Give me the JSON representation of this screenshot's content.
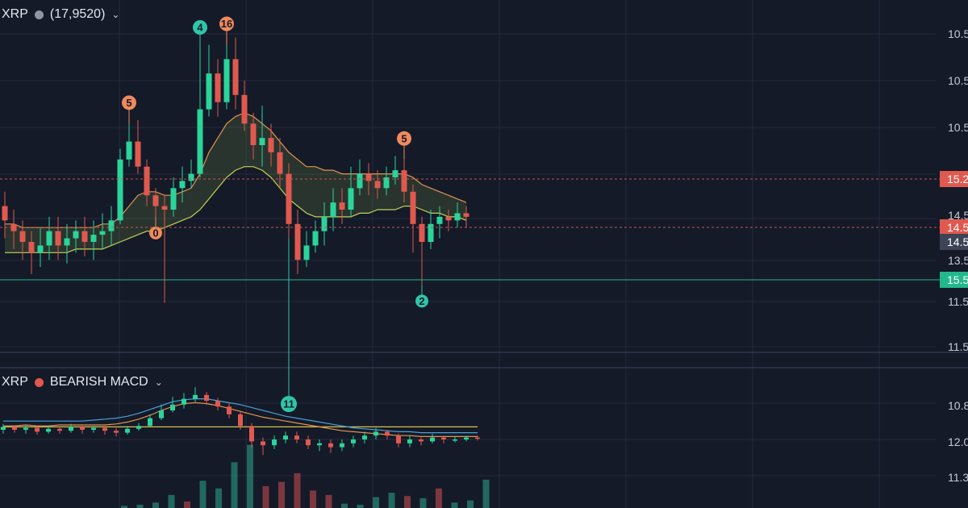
{
  "main_header": {
    "symbol": "XRP",
    "value": "(17,9520)",
    "dot_color": "#8f96a3"
  },
  "macd_header": {
    "symbol": "XRP",
    "label": "BEARISH MACD",
    "dot_color": "#e0594f"
  },
  "colors": {
    "background": "#141a28",
    "up": "#2bd49a",
    "down": "#e0594f",
    "marker_orange": "#f08a5d",
    "marker_teal": "#2fc6a8",
    "band_upper": "#e2944f",
    "band_lower": "#c3d255",
    "macd_blue": "#4a9fd8"
  },
  "chart_data": [
    {
      "type": "candlestick",
      "name": "XRP",
      "y_axis_labels": [
        "10.5",
        "10.5",
        "10.5",
        "14.5",
        "14.5",
        "13.5",
        "11.5",
        "11.5"
      ],
      "price_tags": [
        {
          "text": "15.2",
          "style": "red",
          "line": "dashed"
        },
        {
          "text": "14.5",
          "style": "red",
          "line": "dashed"
        },
        {
          "text": "14.5",
          "style": "gray",
          "line": "none"
        },
        {
          "text": "15.5",
          "style": "teal",
          "line": "solid"
        }
      ],
      "markers": [
        {
          "text": "4",
          "color": "teal",
          "position": "above",
          "candle": 22
        },
        {
          "text": "16",
          "color": "orange",
          "position": "above",
          "candle": 25
        },
        {
          "text": "5",
          "color": "orange",
          "position": "above",
          "candle": 14
        },
        {
          "text": "0",
          "color": "orange",
          "position": "below",
          "candle": 17
        },
        {
          "text": "5",
          "color": "orange",
          "position": "above",
          "candle": 45
        },
        {
          "text": "2",
          "color": "teal",
          "position": "below",
          "candle": 47
        },
        {
          "text": "11",
          "color": "teal",
          "position": "below",
          "candle": 32
        }
      ],
      "candles": [
        [
          67,
          63,
          58,
          71
        ],
        [
          62,
          60,
          55,
          66
        ],
        [
          60,
          57,
          52,
          63
        ],
        [
          57,
          54,
          48,
          60
        ],
        [
          54,
          56,
          50,
          61
        ],
        [
          56,
          60,
          52,
          64
        ],
        [
          60,
          56,
          52,
          64
        ],
        [
          56,
          58,
          51,
          62
        ],
        [
          58,
          60,
          54,
          63
        ],
        [
          60,
          57,
          53,
          64
        ],
        [
          57,
          59,
          52,
          63
        ],
        [
          59,
          60,
          55,
          65
        ],
        [
          60,
          63,
          56,
          67
        ],
        [
          63,
          80,
          62,
          83
        ],
        [
          80,
          85,
          78,
          90
        ],
        [
          85,
          78,
          76,
          91
        ],
        [
          78,
          70,
          67,
          80
        ],
        [
          70,
          67,
          64,
          72
        ],
        [
          67,
          66,
          40,
          70
        ],
        [
          66,
          72,
          64,
          75
        ],
        [
          72,
          74,
          68,
          78
        ],
        [
          74,
          76,
          72,
          80
        ],
        [
          76,
          94,
          75,
          111
        ],
        [
          94,
          104,
          92,
          112
        ],
        [
          104,
          96,
          92,
          108
        ],
        [
          96,
          108,
          94,
          112
        ],
        [
          108,
          98,
          94,
          114
        ],
        [
          98,
          90,
          88,
          102
        ],
        [
          90,
          84,
          80,
          93
        ],
        [
          84,
          86,
          78,
          95
        ],
        [
          86,
          82,
          78,
          90
        ],
        [
          82,
          76,
          72,
          86
        ],
        [
          76,
          62,
          58,
          79
        ],
        [
          62,
          52,
          48,
          66
        ],
        [
          52,
          56,
          50,
          60
        ],
        [
          56,
          60,
          54,
          63
        ],
        [
          60,
          64,
          56,
          68
        ],
        [
          64,
          68,
          60,
          72
        ],
        [
          68,
          66,
          62,
          72
        ],
        [
          66,
          72,
          64,
          78
        ],
        [
          72,
          76,
          70,
          80
        ],
        [
          76,
          74,
          70,
          79
        ],
        [
          74,
          72,
          69,
          77
        ],
        [
          72,
          75,
          70,
          78
        ],
        [
          75,
          77,
          73,
          81
        ],
        [
          77,
          71,
          68,
          80
        ],
        [
          71,
          62,
          54,
          73
        ],
        [
          62,
          57,
          45,
          64
        ],
        [
          57,
          62,
          55,
          66
        ],
        [
          62,
          64,
          58,
          67
        ],
        [
          64,
          63,
          60,
          66
        ],
        [
          63,
          65,
          61,
          68
        ],
        [
          65,
          64,
          61,
          67
        ]
      ],
      "band_upper": [
        62,
        62,
        61,
        61,
        61,
        61,
        61,
        61,
        61,
        61,
        61,
        62,
        62,
        64,
        67,
        70,
        71,
        71,
        70,
        70,
        71,
        72,
        76,
        82,
        86,
        90,
        92,
        93,
        92,
        90,
        88,
        85,
        82,
        80,
        78,
        78,
        77,
        77,
        76,
        76,
        76,
        76,
        76,
        76,
        76,
        76,
        75,
        73,
        72,
        71,
        70,
        69,
        68
      ],
      "band_lower": [
        54,
        54,
        54,
        54,
        54,
        54,
        54,
        54,
        55,
        55,
        55,
        55,
        56,
        57,
        58,
        59,
        60,
        60,
        61,
        62,
        63,
        64,
        66,
        69,
        72,
        75,
        77,
        78,
        78,
        77,
        75,
        72,
        69,
        67,
        65,
        64,
        64,
        64,
        64,
        64,
        65,
        65,
        66,
        66,
        66,
        67,
        67,
        66,
        65,
        65,
        64,
        64,
        63
      ]
    },
    {
      "type": "candlestick",
      "name": "BEARISH MACD",
      "y_axis_labels": [
        "10.8",
        "12.0",
        "11.3"
      ],
      "candles": [
        [
          0,
          0.3,
          -0.4,
          0.6
        ],
        [
          0.3,
          0,
          -0.3,
          0.5
        ],
        [
          0,
          0.2,
          -0.4,
          0.5
        ],
        [
          0.2,
          -0.2,
          -0.5,
          0.4
        ],
        [
          -0.2,
          0.1,
          -0.4,
          0.4
        ],
        [
          0.1,
          -0.1,
          -0.4,
          0.3
        ],
        [
          -0.1,
          0.3,
          -0.3,
          0.6
        ],
        [
          0.3,
          0,
          -0.4,
          0.5
        ],
        [
          0,
          0.2,
          -0.3,
          0.4
        ],
        [
          0.2,
          -0.1,
          -0.5,
          0.4
        ],
        [
          -0.1,
          -0.3,
          -0.7,
          0.2
        ],
        [
          -0.3,
          0.1,
          -0.5,
          0.4
        ],
        [
          0.1,
          0.4,
          -0.1,
          0.7
        ],
        [
          0.4,
          1.2,
          0.3,
          1.6
        ],
        [
          1.2,
          2.0,
          1.0,
          2.6
        ],
        [
          2.0,
          2.6,
          1.8,
          3.4
        ],
        [
          2.6,
          3.2,
          2.2,
          3.8
        ],
        [
          3.2,
          3.6,
          2.9,
          4.4
        ],
        [
          3.6,
          3.0,
          2.6,
          3.9
        ],
        [
          3.0,
          2.4,
          2.0,
          3.3
        ],
        [
          2.4,
          1.6,
          1.2,
          2.8
        ],
        [
          1.6,
          0.4,
          0,
          1.9
        ],
        [
          0.4,
          -1.2,
          -1.8,
          0.7
        ],
        [
          -1.2,
          -1.6,
          -2.6,
          -0.8
        ],
        [
          -1.6,
          -1.0,
          -2.0,
          -0.6
        ],
        [
          -1.0,
          -0.6,
          -1.4,
          -0.2
        ],
        [
          -0.6,
          -1.0,
          -1.4,
          -0.2
        ],
        [
          -1.0,
          -1.6,
          -2.0,
          -0.6
        ],
        [
          -1.6,
          -1.4,
          -2.2,
          -1.0
        ],
        [
          -1.4,
          -1.8,
          -2.4,
          -1.0
        ],
        [
          -1.8,
          -1.4,
          -2.2,
          -1.0
        ],
        [
          -1.4,
          -1.0,
          -1.8,
          -0.6
        ],
        [
          -1.0,
          -0.6,
          -1.4,
          -0.2
        ],
        [
          -0.6,
          -0.2,
          -1.0,
          0.2
        ],
        [
          -0.2,
          -0.6,
          -1.0,
          0
        ],
        [
          -0.6,
          -1.4,
          -1.8,
          -0.4
        ],
        [
          -1.4,
          -1.0,
          -1.8,
          -0.6
        ],
        [
          -1.0,
          -1.2,
          -1.6,
          -0.8
        ],
        [
          -1.2,
          -0.8,
          -1.4,
          -0.4
        ],
        [
          -0.8,
          -1.0,
          -1.4,
          -0.6
        ],
        [
          -1.0,
          -1.0,
          -1.3,
          -0.7
        ],
        [
          -1.0,
          -0.8,
          -1.2,
          -0.6
        ],
        [
          -0.8,
          -0.9,
          -1.1,
          -0.6
        ]
      ],
      "blue_line": [
        0.9,
        0.9,
        0.9,
        0.9,
        0.9,
        0.9,
        0.9,
        0.9,
        1.0,
        1.1,
        1.2,
        1.4,
        1.7,
        2.1,
        2.5,
        2.9,
        3.1,
        3.2,
        3.2,
        3.0,
        2.8,
        2.6,
        2.3,
        2.0,
        1.7,
        1.4,
        1.2,
        1.0,
        0.8,
        0.6,
        0.4,
        0.2,
        0.1,
        0,
        -0.1,
        -0.2,
        -0.2,
        -0.3,
        -0.3,
        -0.3,
        -0.3,
        -0.3,
        -0.3
      ],
      "orange_line": [
        0.4,
        0.4,
        0.5,
        0.4,
        0.4,
        0.5,
        0.5,
        0.5,
        0.5,
        0.5,
        0.6,
        0.8,
        1.1,
        1.5,
        2.0,
        2.4,
        2.7,
        2.8,
        2.7,
        2.5,
        2.2,
        1.9,
        1.6,
        1.3,
        1.1,
        0.9,
        0.7,
        0.5,
        0.3,
        0.1,
        -0.1,
        -0.2,
        -0.3,
        -0.4,
        -0.5,
        -0.6,
        -0.6,
        -0.7,
        -0.7,
        -0.7,
        -0.7,
        -0.7,
        -0.7
      ],
      "yellow_line": [
        0.3,
        0.3,
        0.3,
        0.3,
        0.3,
        0.3,
        0.3,
        0.3,
        0.3,
        0.3,
        0.3,
        0.3,
        0.3,
        0.3,
        0.3,
        0.3,
        0.3,
        0.3,
        0.3,
        0.3,
        0.3,
        0.3,
        0.3,
        0.3,
        0.3,
        0.3,
        0.3,
        0.3,
        0.3,
        0.3,
        0.3,
        0.3,
        0.3,
        0.3,
        0.3,
        0.3,
        0.3,
        0.3,
        0.3,
        0.3,
        0.3,
        0.3,
        0.3
      ],
      "volume": [
        {
          "value": 2,
          "color": "green"
        },
        {
          "value": 3,
          "color": "green"
        },
        {
          "value": 5,
          "color": "green"
        },
        {
          "value": 12,
          "color": "green"
        },
        {
          "value": 6,
          "color": "red"
        },
        {
          "value": 25,
          "color": "green"
        },
        {
          "value": 18,
          "color": "green"
        },
        {
          "value": 42,
          "color": "green"
        },
        {
          "value": 58,
          "color": "green"
        },
        {
          "value": 20,
          "color": "red"
        },
        {
          "value": 24,
          "color": "red"
        },
        {
          "value": 32,
          "color": "red"
        },
        {
          "value": 16,
          "color": "red"
        },
        {
          "value": 12,
          "color": "red"
        },
        {
          "value": 4,
          "color": "green"
        },
        {
          "value": 3,
          "color": "green"
        },
        {
          "value": 10,
          "color": "green"
        },
        {
          "value": 14,
          "color": "green"
        },
        {
          "value": 11,
          "color": "red"
        },
        {
          "value": 9,
          "color": "green"
        },
        {
          "value": 18,
          "color": "red"
        },
        {
          "value": 5,
          "color": "green"
        },
        {
          "value": 7,
          "color": "green"
        },
        {
          "value": 26,
          "color": "green"
        }
      ]
    }
  ]
}
